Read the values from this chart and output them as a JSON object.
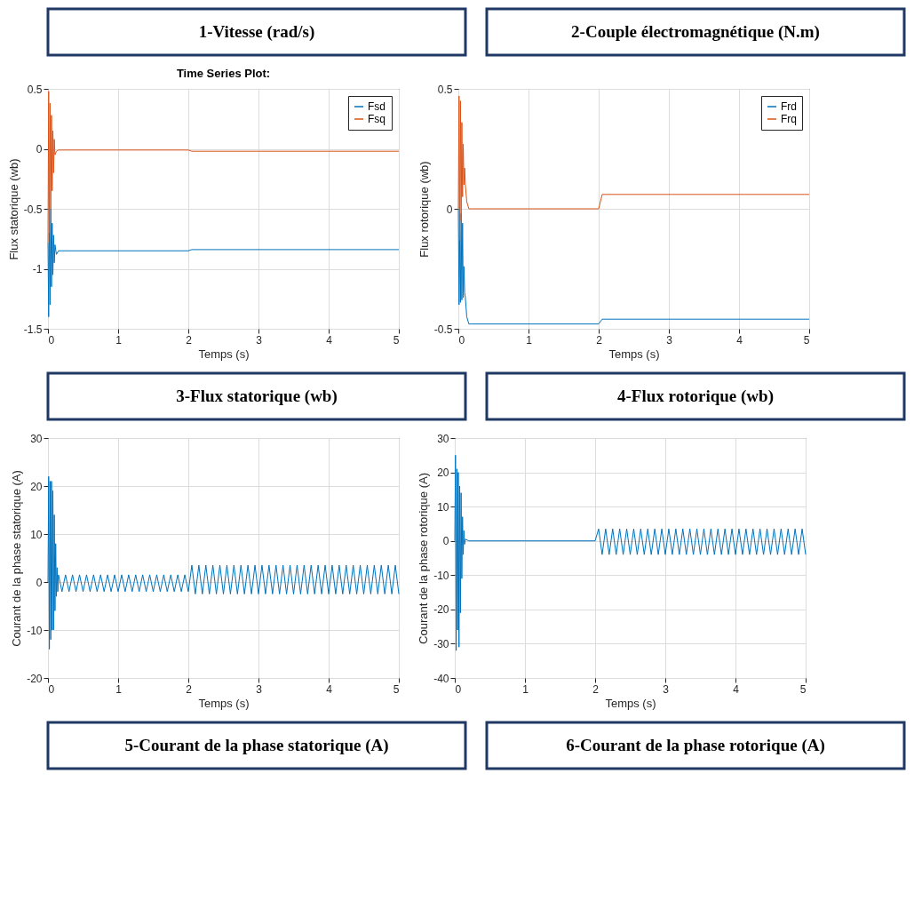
{
  "chart_data": [
    {
      "type": "line",
      "title": "Time Series Plot:",
      "xlabel": "Temps (s)",
      "ylabel": "Flux statorique (wb)",
      "annotations": [
        "1-Vitesse (rad/s)",
        "3-Flux statorique (wb)"
      ],
      "xlim": [
        0,
        5
      ],
      "xticks": [
        0,
        1,
        2,
        3,
        4,
        5
      ],
      "ylim": [
        -1.5,
        0.5
      ],
      "yticks": [
        -1.5,
        -1,
        -0.5,
        0,
        0.5
      ],
      "grid": true,
      "legend": "top right",
      "x": [
        0,
        0.01,
        0.02,
        0.03,
        0.04,
        0.05,
        0.06,
        0.07,
        0.08,
        0.09,
        0.1,
        0.12,
        0.15,
        0.2,
        1,
        2,
        2.05,
        3,
        4,
        5
      ],
      "series": [
        {
          "name": "Fsd",
          "color": "#0072bd",
          "values": [
            -0.78,
            -1.4,
            -0.6,
            -1.3,
            -0.5,
            -1.15,
            -0.62,
            -1.05,
            -0.72,
            -0.95,
            -0.8,
            -0.88,
            -0.85,
            -0.85,
            -0.85,
            -0.85,
            -0.84,
            -0.84,
            -0.84,
            -0.84
          ]
        },
        {
          "name": "Fsq",
          "color": "#d95319",
          "values": [
            -0.78,
            0.48,
            -0.7,
            0.38,
            -0.5,
            0.28,
            -0.35,
            0.15,
            -0.2,
            0.08,
            -0.05,
            -0.02,
            -0.01,
            -0.01,
            -0.01,
            -0.01,
            -0.02,
            -0.02,
            -0.02,
            -0.02
          ]
        }
      ]
    },
    {
      "type": "line",
      "xlabel": "Temps (s)",
      "ylabel": "Flux rotorique (wb)",
      "annotations": [
        "2-Couple électromagnétique (N.m)",
        "4-Flux rotorique (wb)"
      ],
      "xlim": [
        0,
        5
      ],
      "xticks": [
        0,
        1,
        2,
        3,
        4,
        5
      ],
      "ylim": [
        -0.5,
        0.5
      ],
      "yticks": [
        -0.5,
        0,
        0.5
      ],
      "grid": true,
      "legend": "top right",
      "x": [
        0,
        0.01,
        0.02,
        0.03,
        0.04,
        0.05,
        0.06,
        0.07,
        0.08,
        0.09,
        0.1,
        0.12,
        0.15,
        0.2,
        1,
        2,
        2.05,
        3,
        4,
        5
      ],
      "series": [
        {
          "name": "Frd",
          "color": "#0072bd",
          "values": [
            0,
            -0.4,
            -0.1,
            -0.39,
            -0.02,
            -0.38,
            -0.06,
            -0.37,
            -0.24,
            -0.35,
            -0.37,
            -0.45,
            -0.48,
            -0.48,
            -0.48,
            -0.48,
            -0.46,
            -0.46,
            -0.46,
            -0.46
          ]
        },
        {
          "name": "Frq",
          "color": "#d95319",
          "values": [
            0,
            0.47,
            -0.13,
            0.45,
            -0.05,
            0.36,
            0.05,
            0.27,
            0.1,
            0.17,
            0.1,
            0.03,
            0,
            0,
            0,
            0,
            0.06,
            0.06,
            0.06,
            0.06
          ]
        }
      ]
    },
    {
      "type": "line",
      "xlabel": "Temps (s)",
      "ylabel": "Courant de la phase statorique (A)",
      "annotations": [
        "5-Courant de la phase statorique (A)"
      ],
      "xlim": [
        0,
        5
      ],
      "xticks": [
        0,
        1,
        2,
        3,
        4,
        5
      ],
      "ylim": [
        -20,
        30
      ],
      "yticks": [
        -20,
        -10,
        0,
        10,
        20,
        30
      ],
      "grid": true,
      "x": [
        0,
        0.01,
        0.02,
        0.03,
        0.04,
        0.05,
        0.06,
        0.07,
        0.08,
        0.09,
        0.1,
        0.11,
        0.12,
        0.13,
        0.14,
        0.15,
        0.2,
        0.25,
        0.3,
        0.35,
        0.4,
        0.45,
        0.5,
        0.55,
        0.6,
        0.65,
        0.7,
        0.75,
        0.8,
        0.85,
        0.9,
        0.95,
        1,
        1.05,
        1.1,
        1.15,
        1.2,
        1.25,
        1.3,
        1.35,
        1.4,
        1.45,
        1.5,
        1.55,
        1.6,
        1.65,
        1.7,
        1.75,
        1.8,
        1.85,
        1.9,
        1.95,
        2,
        2.05,
        2.1,
        2.15,
        2.2,
        2.25,
        2.3,
        2.35,
        2.4,
        2.45,
        2.5,
        2.55,
        2.6,
        2.65,
        2.7,
        2.75,
        2.8,
        2.85,
        2.9,
        2.95,
        3,
        3.05,
        3.1,
        3.15,
        3.2,
        3.25,
        3.3,
        3.35,
        3.4,
        3.45,
        3.5,
        3.55,
        3.6,
        3.65,
        3.7,
        3.75,
        3.8,
        3.85,
        3.9,
        3.95,
        4,
        4.05,
        4.1,
        4.15,
        4.2,
        4.25,
        4.3,
        4.35,
        4.4,
        4.45,
        4.5,
        4.55,
        4.6,
        4.65,
        4.7,
        4.75,
        4.8,
        4.85,
        4.9,
        4.95,
        5
      ],
      "series": [
        {
          "color": "#0072bd",
          "values": [
            0,
            22,
            -14,
            21,
            -12,
            21,
            -10,
            19,
            -10,
            14,
            -6,
            8,
            -3,
            3,
            -2,
            1.5,
            -2,
            1.5,
            -2,
            1.5,
            -2,
            1.5,
            -2,
            1.5,
            -2,
            1.5,
            -2,
            1.5,
            -2,
            1.5,
            -2,
            1.5,
            -2,
            1.5,
            -2,
            1.5,
            -2,
            1.5,
            -2,
            1.5,
            -2,
            1.5,
            -2,
            1.5,
            -2,
            1.5,
            -2,
            1.5,
            -2,
            1.5,
            -2,
            1.5,
            -2,
            3.5,
            -2.5,
            3.5,
            -2.5,
            3.5,
            -2.5,
            3.5,
            -2.5,
            3.5,
            -2.5,
            3.5,
            -2.5,
            3.5,
            -2.5,
            3.5,
            -2.5,
            3.5,
            -2.5,
            3.5,
            -2.5,
            3.5,
            -2.5,
            3.5,
            -2.5,
            3.5,
            -2.5,
            3.5,
            -2.5,
            3.5,
            -2.5,
            3.5,
            -2.5,
            3.5,
            -2.5,
            3.5,
            -2.5,
            3.5,
            -2.5,
            3.5,
            -2.5,
            3.5,
            -2.5,
            3.5,
            -2.5,
            3.5,
            -2.5,
            3.5,
            -2.5,
            3.5,
            -2.5,
            3.5,
            -2.5,
            3.5,
            -2.5,
            3.5,
            -2.5,
            3.5,
            -2.5,
            3.5,
            -2.5
          ]
        }
      ]
    },
    {
      "type": "line",
      "xlabel": "Temps (s)",
      "ylabel": "Courant de la phase rotorique (A)",
      "annotations": [
        "6-Courant de la phase rotorique (A)"
      ],
      "xlim": [
        0,
        5
      ],
      "xticks": [
        0,
        1,
        2,
        3,
        4,
        5
      ],
      "ylim": [
        -40,
        30
      ],
      "yticks": [
        -40,
        -30,
        -20,
        -10,
        0,
        10,
        20,
        30
      ],
      "grid": true,
      "x": [
        0,
        0.01,
        0.02,
        0.03,
        0.04,
        0.05,
        0.06,
        0.07,
        0.08,
        0.09,
        0.1,
        0.11,
        0.12,
        0.13,
        0.14,
        0.15,
        0.2,
        1,
        2,
        2.05,
        2.1,
        2.15,
        2.2,
        2.25,
        2.3,
        2.35,
        2.4,
        2.45,
        2.5,
        2.55,
        2.6,
        2.65,
        2.7,
        2.75,
        2.8,
        2.85,
        2.9,
        2.95,
        3,
        3.05,
        3.1,
        3.15,
        3.2,
        3.25,
        3.3,
        3.35,
        3.4,
        3.45,
        3.5,
        3.55,
        3.6,
        3.65,
        3.7,
        3.75,
        3.8,
        3.85,
        3.9,
        3.95,
        4,
        4.05,
        4.1,
        4.15,
        4.2,
        4.25,
        4.3,
        4.35,
        4.4,
        4.45,
        4.5,
        4.55,
        4.6,
        4.65,
        4.7,
        4.75,
        4.8,
        4.85,
        4.9,
        4.95,
        5
      ],
      "series": [
        {
          "color": "#0072bd",
          "values": [
            0,
            25,
            -32,
            21,
            -26,
            20,
            -31,
            16,
            -21,
            14,
            -11,
            7,
            -4,
            3,
            -1,
            0.5,
            0,
            0,
            0,
            3.5,
            -4,
            3.5,
            -4,
            3.5,
            -4,
            3.5,
            -4,
            3.5,
            -4,
            3.5,
            -4,
            3.5,
            -4,
            3.5,
            -4,
            3.5,
            -4,
            3.5,
            -4,
            3.5,
            -4,
            3.5,
            -4,
            3.5,
            -4,
            3.5,
            -4,
            3.5,
            -4,
            3.5,
            -4,
            3.5,
            -4,
            3.5,
            -4,
            3.5,
            -4,
            3.5,
            -4,
            3.5,
            -4,
            3.5,
            -4,
            3.5,
            -4,
            3.5,
            -4,
            3.5,
            -4,
            3.5,
            -4,
            3.5,
            -4,
            3.5,
            -4,
            3.5,
            -4,
            3.5,
            -4
          ]
        }
      ]
    }
  ]
}
